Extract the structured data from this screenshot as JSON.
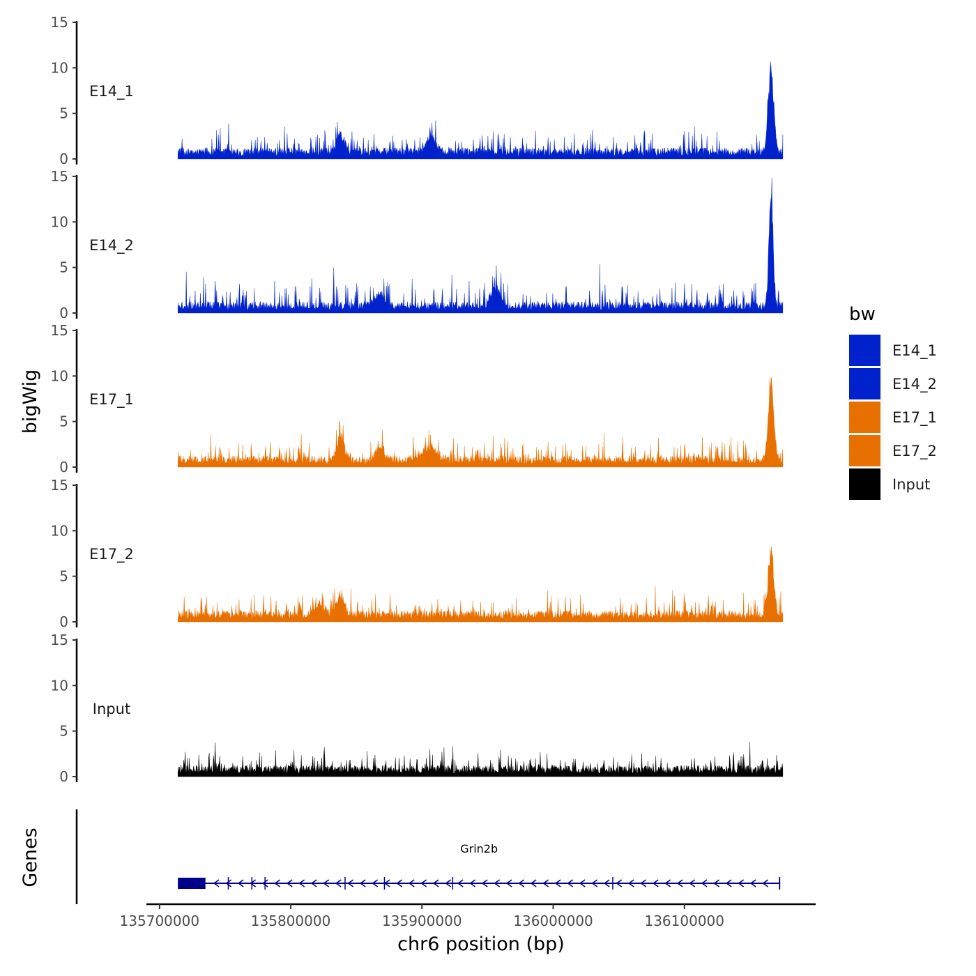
{
  "chart_data": {
    "type": "area",
    "description_title": "",
    "xlabel": "chr6 position (bp)",
    "ylabel": "bigWig",
    "genes_panel_label": "Genes",
    "xlim": [
      135690000,
      136200000
    ],
    "data_range": [
      135714000,
      136175000
    ],
    "xticks": [
      135700000,
      135800000,
      135900000,
      136000000,
      136100000
    ],
    "xtick_labels": [
      "135700000",
      "135800000",
      "135900000",
      "136000000",
      "136100000"
    ],
    "ylim": [
      0,
      15
    ],
    "yticks": [
      0,
      5,
      10,
      15
    ],
    "ytick_labels": [
      "0",
      "5",
      "10",
      "15"
    ],
    "legend": {
      "title": "bw",
      "position": "right",
      "entries": [
        {
          "label": "E14_1",
          "color": "#0022CC"
        },
        {
          "label": "E14_2",
          "color": "#0022CC"
        },
        {
          "label": "E17_1",
          "color": "#E87000"
        },
        {
          "label": "E17_2",
          "color": "#E87000"
        },
        {
          "label": "Input",
          "color": "#000000"
        }
      ]
    },
    "series": [
      {
        "name": "E14_1",
        "color": "#0022CC",
        "baseline": 1.0,
        "noise": 1.1,
        "peaks": [
          {
            "pos": 136166000,
            "height": 10.0,
            "width": 3000
          },
          {
            "pos": 135838000,
            "height": 2.2,
            "width": 4000
          },
          {
            "pos": 135907000,
            "height": 2.0,
            "width": 5000
          }
        ]
      },
      {
        "name": "E14_2",
        "color": "#0022CC",
        "baseline": 1.0,
        "noise": 1.3,
        "peaks": [
          {
            "pos": 136166000,
            "height": 14.5,
            "width": 2200
          },
          {
            "pos": 135956000,
            "height": 2.5,
            "width": 5000
          },
          {
            "pos": 135868000,
            "height": 1.5,
            "width": 6000
          }
        ]
      },
      {
        "name": "E17_1",
        "color": "#E87000",
        "baseline": 1.0,
        "noise": 1.1,
        "peaks": [
          {
            "pos": 136166000,
            "height": 9.5,
            "width": 3000
          },
          {
            "pos": 135838000,
            "height": 3.0,
            "width": 4000
          },
          {
            "pos": 135868000,
            "height": 2.0,
            "width": 4000
          },
          {
            "pos": 135905000,
            "height": 1.5,
            "width": 8000
          }
        ]
      },
      {
        "name": "E17_2",
        "color": "#E87000",
        "baseline": 1.0,
        "noise": 1.1,
        "peaks": [
          {
            "pos": 136166000,
            "height": 7.8,
            "width": 3000
          },
          {
            "pos": 135838000,
            "height": 2.5,
            "width": 4000
          },
          {
            "pos": 135822000,
            "height": 1.5,
            "width": 5000
          }
        ]
      },
      {
        "name": "Input",
        "color": "#000000",
        "baseline": 1.0,
        "noise": 0.9,
        "peaks": []
      }
    ],
    "gene": {
      "name": "Grin2b",
      "strand": "-",
      "start": 135714000,
      "end": 136173000,
      "color": "#00008B",
      "exons": [
        {
          "start": 135714000,
          "end": 135735000
        },
        {
          "start": 135752000,
          "end": 135752500
        },
        {
          "start": 135770000,
          "end": 135770500
        },
        {
          "start": 135780000,
          "end": 135780500
        },
        {
          "start": 135841000,
          "end": 135841500
        },
        {
          "start": 135871000,
          "end": 135871600
        },
        {
          "start": 135923000,
          "end": 135923600
        },
        {
          "start": 136045000,
          "end": 136045600
        },
        {
          "start": 136172000,
          "end": 136173000
        }
      ]
    }
  }
}
